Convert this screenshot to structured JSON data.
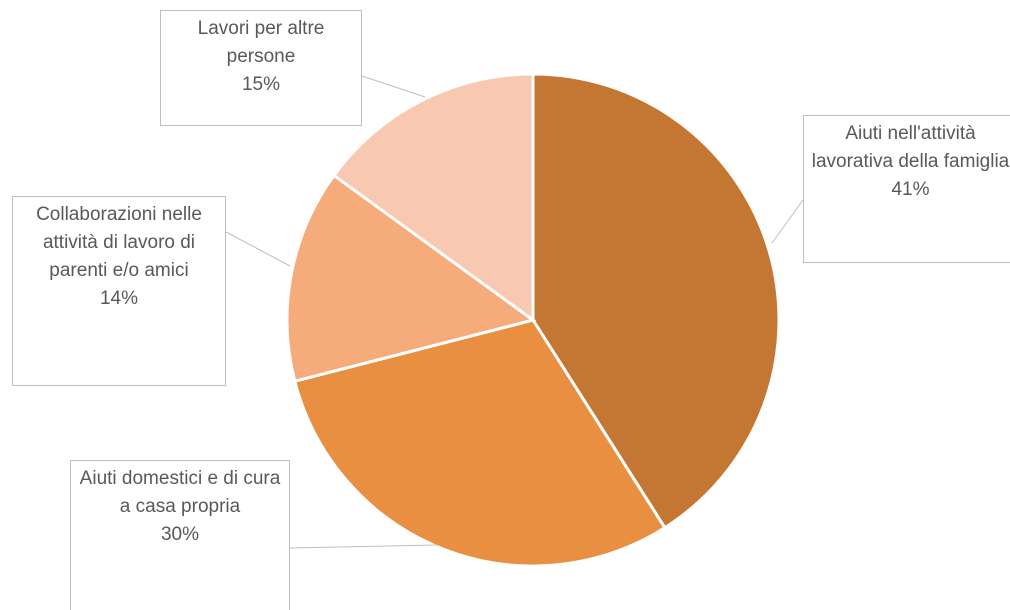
{
  "chart_data": {
    "type": "pie",
    "categories": [
      "Aiuti nell'attività lavorativa della famiglia",
      "Aiuti domestici e di cura a casa propria",
      "Collaborazioni nelle attività di lavoro di parenti e/o amici",
      "Lavori per altre persone"
    ],
    "values": [
      41,
      30,
      14,
      15
    ],
    "value_labels": [
      "41%",
      "30%",
      "14%",
      "15%"
    ],
    "colors": [
      "#c47633",
      "#e88f41",
      "#f5ab7a",
      "#f8c8b0"
    ]
  }
}
